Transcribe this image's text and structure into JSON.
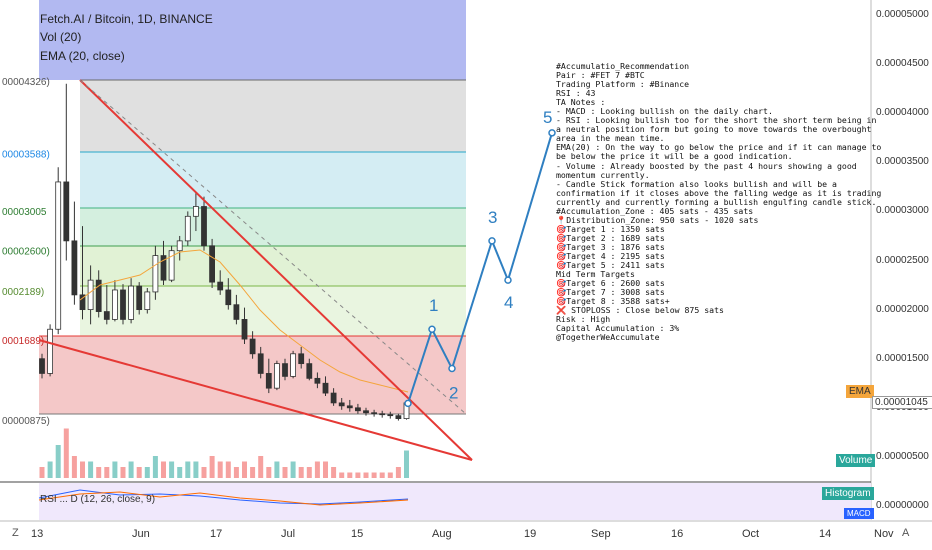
{
  "header": {
    "symbol": "Fetch.AI / Bitcoin, 1D, BINANCE",
    "vol": "Vol (20)",
    "ema": "EMA (20, close)"
  },
  "colors": {
    "up": "#26a69a",
    "down": "#ef5350",
    "ema": "#f4a53b",
    "wedge": "#e53935",
    "projection": "#2f7fc1",
    "macd": "#2962ff",
    "signal": "#ff6d00"
  },
  "chart_data": [
    {
      "type": "candlestick",
      "title": "Fetch.AI / Bitcoin, 1D, BINANCE",
      "ylim": [
        5.5e-06,
        5.2e-06
      ],
      "y_tick_labels": [
        "0.00005000",
        "0.00004500",
        "0.00004000",
        "0.00003500",
        "0.00003000",
        "0.00002500",
        "0.00002000",
        "0.00001500",
        "0.00001000",
        "0.00000500",
        "0.00000000"
      ],
      "x_tick_labels": [
        "13",
        "Jun",
        "17",
        "Jul",
        "15",
        "Aug",
        "19",
        "Sep",
        "16",
        "Oct",
        "14",
        "Nov"
      ],
      "price_axis_marker": "0.00001045",
      "fib_levels": [
        {
          "label": "00004326)",
          "value": 4.326e-05
        },
        {
          "label": "00003588)",
          "value": 3.588e-05
        },
        {
          "label": "00003005",
          "value": 3.005e-05
        },
        {
          "label": "00002600)",
          "value": 2.6e-05
        },
        {
          "label": "0002189)",
          "value": 2.19e-05
        },
        {
          "label": "0001689)",
          "value": 1.689e-05
        },
        {
          "label": "00000875)",
          "value": 8.75e-06
        }
      ],
      "projection_labels": [
        "1",
        "2",
        "3",
        "4",
        "5"
      ],
      "series": [
        {
          "name": "EMA",
          "label": "EMA"
        }
      ],
      "candles": [
        [
          1.5e-05,
          1.55e-05,
          1.3e-05,
          1.35e-05
        ],
        [
          1.35e-05,
          1.85e-05,
          1.32e-05,
          1.8e-05
        ],
        [
          1.8e-05,
          3.45e-05,
          1.75e-05,
          3.3e-05
        ],
        [
          3.3e-05,
          4.3e-05,
          2.5e-05,
          2.7e-05
        ],
        [
          2.7e-05,
          3.1e-05,
          2.05e-05,
          2.15e-05
        ],
        [
          2.15e-05,
          2.85e-05,
          1.9e-05,
          2e-05
        ],
        [
          2e-05,
          2.45e-05,
          1.85e-05,
          2.3e-05
        ],
        [
          2.3e-05,
          2.4e-05,
          1.92e-05,
          1.98e-05
        ],
        [
          1.98e-05,
          2.25e-05,
          1.85e-05,
          1.9e-05
        ],
        [
          1.9e-05,
          2.3e-05,
          1.88e-05,
          2.2e-05
        ],
        [
          2.2e-05,
          2.26e-05,
          1.85e-05,
          1.9e-05
        ],
        [
          1.9e-05,
          2.32e-05,
          1.86e-05,
          2.24e-05
        ],
        [
          2.24e-05,
          2.28e-05,
          1.95e-05,
          2e-05
        ],
        [
          2e-05,
          2.22e-05,
          1.96e-05,
          2.18e-05
        ],
        [
          2.18e-05,
          2.65e-05,
          2.1e-05,
          2.55e-05
        ],
        [
          2.55e-05,
          2.7e-05,
          2.25e-05,
          2.3e-05
        ],
        [
          2.3e-05,
          2.65e-05,
          2.28e-05,
          2.6e-05
        ],
        [
          2.6e-05,
          2.75e-05,
          2.5e-05,
          2.7e-05
        ],
        [
          2.7e-05,
          3e-05,
          2.65e-05,
          2.95e-05
        ],
        [
          2.95e-05,
          3.2e-05,
          2.8e-05,
          3.05e-05
        ],
        [
          3.05e-05,
          3.15e-05,
          2.6e-05,
          2.65e-05
        ],
        [
          2.65e-05,
          2.72e-05,
          2.22e-05,
          2.28e-05
        ],
        [
          2.28e-05,
          2.4e-05,
          2.15e-05,
          2.2e-05
        ],
        [
          2.2e-05,
          2.32e-05,
          2e-05,
          2.05e-05
        ],
        [
          2.05e-05,
          2.15e-05,
          1.85e-05,
          1.9e-05
        ],
        [
          1.9e-05,
          2.02e-05,
          1.65e-05,
          1.7e-05
        ],
        [
          1.7e-05,
          1.78e-05,
          1.5e-05,
          1.55e-05
        ],
        [
          1.55e-05,
          1.62e-05,
          1.3e-05,
          1.35e-05
        ],
        [
          1.35e-05,
          1.5e-05,
          1.15e-05,
          1.2e-05
        ],
        [
          1.2e-05,
          1.48e-05,
          1.18e-05,
          1.45e-05
        ],
        [
          1.45e-05,
          1.5e-05,
          1.28e-05,
          1.32e-05
        ],
        [
          1.32e-05,
          1.58e-05,
          1.3e-05,
          1.55e-05
        ],
        [
          1.55e-05,
          1.62e-05,
          1.4e-05,
          1.45e-05
        ],
        [
          1.45e-05,
          1.5e-05,
          1.28e-05,
          1.3e-05
        ],
        [
          1.3e-05,
          1.36e-05,
          1.2e-05,
          1.25e-05
        ],
        [
          1.25e-05,
          1.32e-05,
          1.12e-05,
          1.15e-05
        ],
        [
          1.15e-05,
          1.2e-05,
          1.02e-05,
          1.05e-05
        ],
        [
          1.05e-05,
          1.1e-05,
          9.8e-06,
          1.02e-05
        ],
        [
          1.02e-05,
          1.08e-05,
          9.6e-06,
          1e-05
        ],
        [
          1e-05,
          1.04e-05,
          9.4e-06,
          9.7e-06
        ],
        [
          9.7e-06,
          1e-05,
          9.2e-06,
          9.5e-06
        ],
        [
          9.5e-06,
          9.8e-06,
          9.1e-06,
          9.4e-06
        ],
        [
          9.4e-06,
          9.7e-06,
          9e-06,
          9.3e-06
        ],
        [
          9.3e-06,
          9.6e-06,
          8.9e-06,
          9.2e-06
        ],
        [
          9.2e-06,
          9.4e-06,
          8.7e-06,
          8.9e-06
        ],
        [
          8.9e-06,
          1.08e-05,
          8.8e-06,
          1.05e-05
        ]
      ],
      "volumes": [
        2,
        3,
        6,
        9,
        4,
        3,
        3,
        2,
        2,
        3,
        2,
        3,
        2,
        2,
        4,
        3,
        3,
        2,
        3,
        3,
        2,
        4,
        3,
        3,
        2,
        3,
        2,
        4,
        2,
        3,
        2,
        3,
        2,
        2,
        3,
        3,
        2,
        1,
        1,
        1,
        1,
        1,
        1,
        1,
        2,
        5
      ],
      "projection": [
        {
          "date_index": 45,
          "price": 1.045e-05
        },
        {
          "date_index": 51,
          "price": 1.8e-05
        },
        {
          "date_index": 55,
          "price": 1.4e-05
        },
        {
          "date_index": 61,
          "price": 2.7e-05
        },
        {
          "date_index": 64,
          "price": 2.3e-05
        },
        {
          "date_index": 72,
          "price": 3.8e-05
        }
      ]
    }
  ],
  "ema_label": "EMA",
  "volume_badge": "Volume",
  "histogram_badge": "Histogram",
  "macd_badge": "MACD",
  "indicator_label": "RSI ... D (12, 26, close, 9)",
  "axis_z": "Z",
  "axis_a": "A",
  "notes": [
    "#Accumulatio_Recommendation",
    "Pair : #FET 7 #BTC",
    "Trading Platform : #Binance",
    "RSI : 43",
    "TA Notes :",
    "- MACD : Looking bullish on the daily chart.",
    "- RSI : Looking bullish too for the short the short term being in",
    "a neutral position form but going to move towards the overbought",
    "area in the mean time.",
    "EMA(20) : On the way to go below the price and if it can manage to",
    "be below the price it will be a good indication.",
    "- Volume :  Already boosted by the past 4 hours showing a good",
    "momentum currently.",
    "- Candle Stick formation also looks bullish and will be a",
    "confirmation if it closes above the falling wedge as it is trading",
    "currently and currently forming a bullish engulfing candle stick.",
    "#Accumulation_Zone : 405 sats - 435 sats",
    "📍Distribution_Zone: 950 sats - 1020 sats",
    "🎯Target 1 : 1350 sats",
    "🎯Target 2 : 1689  sats",
    "🎯Target 3 : 1876 sats",
    "🎯Target 4 : 2195 sats",
    "🎯Target 5 :  2411 sats",
    "Mid Term Targets",
    "🎯Target 6 : 2600 sats",
    "🎯Target 7 : 3008 sats",
    "🎯Target 8 : 3588 sats+",
    "❌ STOPLOSS : Close below 875 sats",
    "Risk : High",
    "Capital Accumulation : 3%",
    "@TogetherWeAccumulate"
  ]
}
